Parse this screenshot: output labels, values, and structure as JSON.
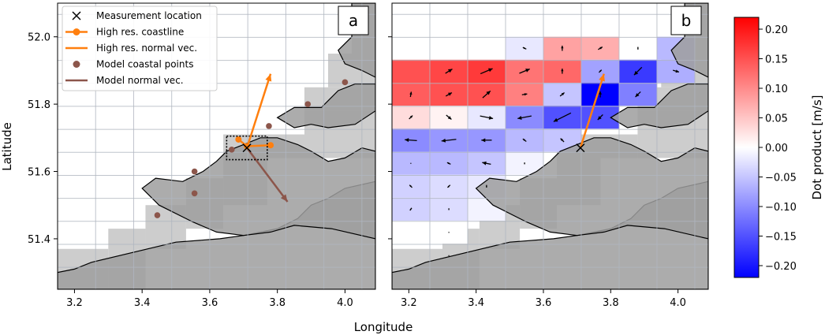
{
  "chart_data": {
    "type": "map-heatmap-quiver",
    "panels": [
      {
        "tag": "a",
        "xlim": [
          3.15,
          4.09
        ],
        "ylim": [
          51.25,
          52.1
        ],
        "grid": true,
        "legend_position": "top-left",
        "legend": [
          {
            "label": "Measurement location",
            "marker": "x",
            "color": "#000000"
          },
          {
            "label": "High res. coastline",
            "marker": "o-line",
            "color": "#ff7f0e"
          },
          {
            "label": "High res. normal vec.",
            "marker": "line",
            "color": "#ff7f0e"
          },
          {
            "label": "Model coastal points",
            "marker": "o",
            "color": "#8c564b"
          },
          {
            "label": "Model normal vec.",
            "marker": "line",
            "color": "#8c564b"
          }
        ],
        "measurement_location": {
          "x": 3.71,
          "y": 51.67
        },
        "high_res_coastline": [
          [
            3.685,
            51.695
          ],
          [
            3.71,
            51.675
          ],
          [
            3.78,
            51.678
          ]
        ],
        "high_res_normal_vector": {
          "from": [
            3.71,
            51.67
          ],
          "to": [
            3.78,
            51.89
          ]
        },
        "model_coastal_points": [
          [
            3.445,
            51.47
          ],
          [
            3.555,
            51.535
          ],
          [
            3.555,
            51.6
          ],
          [
            3.665,
            51.665
          ],
          [
            3.775,
            51.735
          ],
          [
            3.89,
            51.8
          ],
          [
            4.0,
            51.865
          ]
        ],
        "model_normal_vector": {
          "from": [
            3.71,
            51.67
          ],
          "to": [
            3.83,
            51.51
          ]
        },
        "search_box": {
          "x": [
            3.65,
            3.77
          ],
          "y": [
            51.635,
            51.705
          ]
        }
      },
      {
        "tag": "b",
        "xlim": [
          3.15,
          4.09
        ],
        "ylim": [
          51.25,
          52.1
        ],
        "grid": true,
        "measurement_location": {
          "x": 3.71,
          "y": 51.67
        },
        "high_res_normal_vector": {
          "from": [
            3.71,
            51.67
          ],
          "to": [
            3.78,
            51.89
          ]
        }
      }
    ],
    "x_ticks": [
      "3.2",
      "3.4",
      "3.6",
      "3.8",
      "4.0"
    ],
    "y_ticks": [
      "51.4",
      "51.6",
      "51.8",
      "52.0"
    ],
    "xlabel": "Longitude",
    "ylabel": "Latitude",
    "colorbar": {
      "label": "Dot product [m/s]",
      "range": [
        -0.22,
        0.22
      ],
      "colormap": "bwr",
      "ticks": [
        "0.20",
        "0.15",
        "0.10",
        "0.05",
        "0.00",
        "−0.05",
        "−0.10",
        "−0.15",
        "−0.20"
      ]
    },
    "grid_cells": {
      "lon0": 3.15,
      "dlon": 0.1125,
      "lat0": 51.247,
      "dlat": 0.0683,
      "rows": [
        [
          null,
          null,
          null,
          -0.02,
          0.08,
          0.07,
          0.0,
          -0.06
        ],
        [
          0.15,
          0.16,
          0.17,
          0.12,
          0.13,
          -0.08,
          -0.17,
          -0.07
        ],
        [
          0.14,
          0.15,
          0.15,
          0.11,
          -0.05,
          -0.22,
          -0.11,
          null
        ],
        [
          0.03,
          0.01,
          -0.02,
          -0.1,
          -0.15,
          -0.15,
          null,
          null
        ],
        [
          -0.1,
          -0.09,
          -0.09,
          -0.06,
          -0.05,
          null,
          null,
          null
        ],
        [
          -0.06,
          -0.06,
          -0.05,
          -0.01,
          null,
          null,
          null,
          null
        ],
        [
          -0.04,
          -0.03,
          -0.02,
          null,
          null,
          null,
          null,
          null
        ],
        [
          -0.04,
          -0.03,
          -0.01,
          null,
          null,
          null,
          null,
          null
        ],
        [
          0.0,
          0.0,
          null,
          null,
          null,
          null,
          null,
          null
        ]
      ],
      "row_lat_first": 51.966,
      "col_lon_first": 3.206
    },
    "quiver": [
      [
        51.966,
        3.544,
        -0.2,
        0.1
      ],
      [
        51.966,
        3.656,
        0.0,
        0.3
      ],
      [
        51.966,
        3.769,
        0.25,
        0.15
      ],
      [
        51.966,
        3.881,
        0.0,
        0.15
      ],
      [
        51.898,
        3.319,
        0.4,
        0.25
      ],
      [
        51.898,
        3.431,
        0.7,
        0.3
      ],
      [
        51.898,
        3.544,
        0.6,
        0.25
      ],
      [
        51.898,
        3.656,
        0.0,
        0.3
      ],
      [
        51.898,
        3.769,
        0.15,
        0.15
      ],
      [
        51.898,
        3.881,
        -0.45,
        -0.45
      ],
      [
        51.898,
        3.994,
        0.35,
        -0.1
      ],
      [
        51.829,
        3.206,
        0.05,
        0.3
      ],
      [
        51.829,
        3.319,
        0.35,
        0.2
      ],
      [
        51.829,
        3.431,
        0.45,
        0.4
      ],
      [
        51.829,
        3.544,
        0.3,
        0.05
      ],
      [
        51.829,
        3.656,
        0.25,
        0.2
      ],
      [
        51.829,
        3.769,
        0.0,
        0.35
      ],
      [
        51.829,
        3.881,
        -0.3,
        -0.3
      ],
      [
        51.761,
        3.206,
        0.2,
        0.2
      ],
      [
        51.761,
        3.319,
        0.3,
        -0.25
      ],
      [
        51.761,
        3.431,
        0.75,
        -0.15
      ],
      [
        51.761,
        3.544,
        -0.8,
        -0.15
      ],
      [
        51.761,
        3.656,
        -1.0,
        -0.5
      ],
      [
        51.761,
        3.769,
        -0.3,
        -0.3
      ],
      [
        51.693,
        3.206,
        -0.7,
        0.05
      ],
      [
        51.693,
        3.319,
        -0.85,
        -0.1
      ],
      [
        51.693,
        3.431,
        -0.6,
        0.0
      ],
      [
        51.693,
        3.544,
        -0.2,
        0.15
      ],
      [
        51.693,
        3.656,
        -0.2,
        0.2
      ],
      [
        51.624,
        3.206,
        0.05,
        0.0
      ],
      [
        51.624,
        3.319,
        -0.2,
        0.1
      ],
      [
        51.624,
        3.431,
        -0.5,
        0.1
      ],
      [
        51.624,
        3.544,
        0.0,
        0.1
      ],
      [
        51.556,
        3.206,
        -0.15,
        0.15
      ],
      [
        51.556,
        3.319,
        -0.15,
        -0.15
      ],
      [
        51.556,
        3.431,
        0.0,
        -0.15
      ],
      [
        51.488,
        3.206,
        -0.1,
        -0.15
      ],
      [
        51.488,
        3.319,
        0.0,
        -0.1
      ],
      [
        51.419,
        3.319,
        0.0,
        0.05
      ],
      [
        51.35,
        3.319,
        0.0,
        0.05
      ]
    ]
  }
}
